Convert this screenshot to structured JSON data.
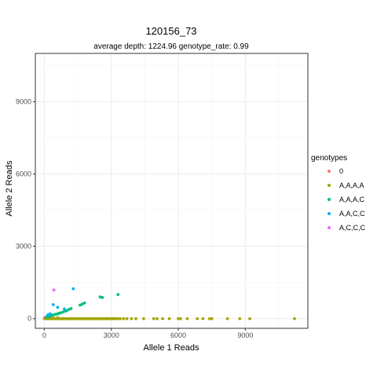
{
  "chart_data": {
    "type": "scatter",
    "title": "120156_73",
    "subtitle": "average depth:  1224.96  genotype_rate:  0.99",
    "xlabel": "Allele 1 Reads",
    "ylabel": "Allele 2 Reads",
    "xlim": [
      -400,
      11800
    ],
    "ylim": [
      -400,
      11000
    ],
    "xticks": [
      0,
      3000,
      6000,
      9000
    ],
    "yticks": [
      0,
      3000,
      6000,
      9000
    ],
    "xtick_labels": [
      "0",
      "3000",
      "6000",
      "9000"
    ],
    "ytick_labels": [
      "0",
      "3000",
      "6000",
      "9000"
    ],
    "grid": true,
    "legend_position": "right",
    "legend_title": "genotypes",
    "series": [
      {
        "name": "0",
        "color": "#F8766D",
        "points": [
          [
            0,
            0
          ],
          [
            30,
            60
          ],
          [
            80,
            20
          ]
        ]
      },
      {
        "name": "A,A,A,A",
        "color": "#A3A500",
        "points": [
          [
            50,
            0
          ],
          [
            100,
            0
          ],
          [
            150,
            0
          ],
          [
            200,
            0
          ],
          [
            250,
            0
          ],
          [
            300,
            0
          ],
          [
            350,
            0
          ],
          [
            400,
            0
          ],
          [
            450,
            0
          ],
          [
            500,
            0
          ],
          [
            550,
            0
          ],
          [
            600,
            0
          ],
          [
            650,
            0
          ],
          [
            700,
            0
          ],
          [
            750,
            0
          ],
          [
            800,
            0
          ],
          [
            850,
            0
          ],
          [
            900,
            0
          ],
          [
            950,
            0
          ],
          [
            1000,
            0
          ],
          [
            1050,
            0
          ],
          [
            1100,
            0
          ],
          [
            1150,
            0
          ],
          [
            1200,
            0
          ],
          [
            1250,
            0
          ],
          [
            1300,
            0
          ],
          [
            1350,
            0
          ],
          [
            1400,
            0
          ],
          [
            1450,
            0
          ],
          [
            1500,
            0
          ],
          [
            1550,
            0
          ],
          [
            1600,
            0
          ],
          [
            1650,
            0
          ],
          [
            1700,
            0
          ],
          [
            1750,
            0
          ],
          [
            1800,
            0
          ],
          [
            1850,
            0
          ],
          [
            1900,
            0
          ],
          [
            1950,
            0
          ],
          [
            2000,
            0
          ],
          [
            2050,
            0
          ],
          [
            2100,
            0
          ],
          [
            2150,
            0
          ],
          [
            2200,
            0
          ],
          [
            2250,
            0
          ],
          [
            2300,
            0
          ],
          [
            2350,
            0
          ],
          [
            2400,
            0
          ],
          [
            2450,
            0
          ],
          [
            2500,
            0
          ],
          [
            2550,
            0
          ],
          [
            2600,
            0
          ],
          [
            2650,
            0
          ],
          [
            2700,
            0
          ],
          [
            2750,
            0
          ],
          [
            2800,
            0
          ],
          [
            2850,
            0
          ],
          [
            2900,
            0
          ],
          [
            2950,
            0
          ],
          [
            3000,
            0
          ],
          [
            3050,
            0
          ],
          [
            3100,
            0
          ],
          [
            3150,
            0
          ],
          [
            3200,
            0
          ],
          [
            3300,
            0
          ],
          [
            3400,
            0
          ],
          [
            3550,
            0
          ],
          [
            3700,
            0
          ],
          [
            3900,
            0
          ],
          [
            4100,
            0
          ],
          [
            4450,
            0
          ],
          [
            4900,
            0
          ],
          [
            5050,
            0
          ],
          [
            5300,
            0
          ],
          [
            5600,
            0
          ],
          [
            6000,
            0
          ],
          [
            6100,
            0
          ],
          [
            6400,
            0
          ],
          [
            6850,
            0
          ],
          [
            7100,
            0
          ],
          [
            7400,
            0
          ],
          [
            7500,
            0
          ],
          [
            8200,
            0
          ],
          [
            8750,
            0
          ],
          [
            9200,
            0
          ],
          [
            11200,
            0
          ],
          [
            200,
            30
          ],
          [
            400,
            20
          ],
          [
            600,
            40
          ],
          [
            100,
            50
          ]
        ]
      },
      {
        "name": "A,A,A,C",
        "color": "#00BF7D",
        "points": [
          [
            100,
            60
          ],
          [
            200,
            90
          ],
          [
            300,
            120
          ],
          [
            400,
            140
          ],
          [
            500,
            180
          ],
          [
            600,
            200
          ],
          [
            700,
            230
          ],
          [
            800,
            260
          ],
          [
            900,
            300
          ],
          [
            1000,
            330
          ],
          [
            1100,
            380
          ],
          [
            1200,
            420
          ],
          [
            1600,
            560
          ],
          [
            1700,
            600
          ],
          [
            1800,
            650
          ],
          [
            2500,
            900
          ],
          [
            2600,
            880
          ],
          [
            3300,
            1000
          ],
          [
            250,
            100
          ],
          [
            350,
            160
          ],
          [
            650,
            220
          ]
        ]
      },
      {
        "name": "A,A,C,C",
        "color": "#00B0F6",
        "points": [
          [
            150,
            150
          ],
          [
            250,
            200
          ],
          [
            400,
            580
          ],
          [
            600,
            470
          ],
          [
            900,
            400
          ],
          [
            1300,
            1240
          ]
        ]
      },
      {
        "name": "A,C,C,C",
        "color": "#E76BF3",
        "points": [
          [
            430,
            1190
          ]
        ]
      }
    ]
  }
}
